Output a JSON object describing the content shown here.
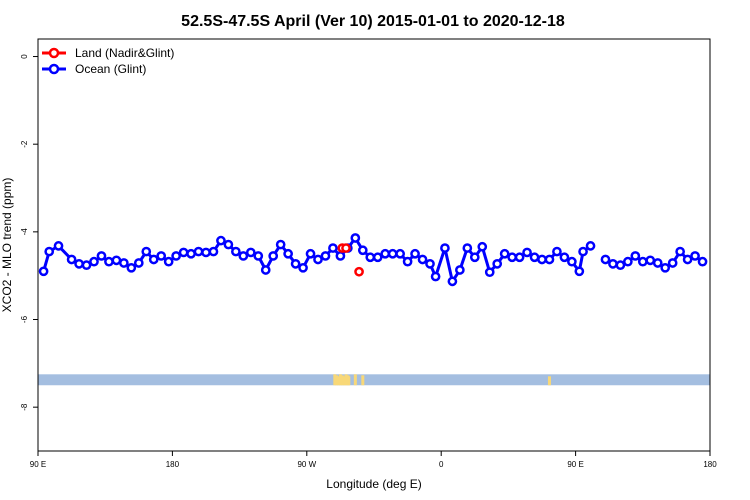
{
  "chart_data": {
    "type": "line",
    "title": "52.5S-47.5S April (Ver 10)   2015-01-01 to 2020-12-18",
    "xlabel": "Longitude (deg E)",
    "ylabel": "XCO2 - MLO trend (ppm)",
    "xlim": [
      90,
      450
    ],
    "ylim": [
      -9.0,
      0.4
    ],
    "x_ticks": [
      {
        "value": 90,
        "label": "90 E"
      },
      {
        "value": 162,
        "label": "180"
      },
      {
        "value": 234,
        "label": "90 W"
      },
      {
        "value": 306,
        "label": "0"
      },
      {
        "value": 378,
        "label": "90 E"
      },
      {
        "value": 450,
        "label": "180"
      }
    ],
    "y_ticks": [
      0,
      -2,
      -4,
      -6,
      -8
    ],
    "legend_position": "top-left",
    "series": [
      {
        "name": "Land (Nadir&Glint)",
        "color": "#ff0000",
        "points": [
          [
            253,
            -4.37
          ],
          [
            255,
            -4.37
          ],
          [
            262,
            -4.91
          ]
        ]
      },
      {
        "name": "Ocean (Glint)",
        "color": "#0000ff",
        "segments": [
          [
            [
              93,
              -4.9
            ],
            [
              96,
              -4.45
            ],
            [
              101,
              -4.32
            ],
            [
              108,
              -4.63
            ],
            [
              112,
              -4.73
            ],
            [
              116,
              -4.76
            ],
            [
              120,
              -4.68
            ],
            [
              124,
              -4.55
            ],
            [
              128,
              -4.68
            ],
            [
              132,
              -4.65
            ],
            [
              136,
              -4.71
            ],
            [
              140,
              -4.82
            ],
            [
              144,
              -4.71
            ],
            [
              148,
              -4.45
            ],
            [
              152,
              -4.63
            ],
            [
              156,
              -4.55
            ],
            [
              160,
              -4.68
            ],
            [
              164,
              -4.55
            ],
            [
              168,
              -4.47
            ],
            [
              172,
              -4.5
            ],
            [
              176,
              -4.45
            ],
            [
              180,
              -4.47
            ],
            [
              184,
              -4.45
            ],
            [
              188,
              -4.2
            ],
            [
              192,
              -4.29
            ],
            [
              196,
              -4.45
            ],
            [
              200,
              -4.55
            ],
            [
              204,
              -4.47
            ],
            [
              208,
              -4.55
            ],
            [
              212,
              -4.87
            ],
            [
              216,
              -4.55
            ],
            [
              220,
              -4.29
            ],
            [
              224,
              -4.5
            ],
            [
              228,
              -4.73
            ],
            [
              232,
              -4.82
            ],
            [
              236,
              -4.5
            ],
            [
              240,
              -4.63
            ],
            [
              244,
              -4.55
            ],
            [
              248,
              -4.37
            ],
            [
              252,
              -4.55
            ],
            [
              256,
              -4.37
            ],
            [
              260,
              -4.14
            ],
            [
              264,
              -4.42
            ],
            [
              268,
              -4.58
            ],
            [
              272,
              -4.58
            ],
            [
              276,
              -4.5
            ],
            [
              280,
              -4.5
            ],
            [
              284,
              -4.5
            ],
            [
              288,
              -4.68
            ],
            [
              292,
              -4.5
            ],
            [
              296,
              -4.63
            ],
            [
              300,
              -4.73
            ],
            [
              303,
              -5.02
            ],
            [
              308,
              -4.37
            ],
            [
              312,
              -5.13
            ],
            [
              316,
              -4.87
            ],
            [
              320,
              -4.37
            ],
            [
              324,
              -4.58
            ],
            [
              328,
              -4.34
            ],
            [
              332,
              -4.92
            ],
            [
              336,
              -4.73
            ],
            [
              340,
              -4.5
            ],
            [
              344,
              -4.58
            ],
            [
              348,
              -4.58
            ],
            [
              352,
              -4.47
            ],
            [
              356,
              -4.58
            ],
            [
              360,
              -4.63
            ],
            [
              364,
              -4.63
            ],
            [
              368,
              -4.45
            ],
            [
              372,
              -4.58
            ],
            [
              376,
              -4.68
            ],
            [
              380,
              -4.9
            ],
            [
              382,
              -4.45
            ],
            [
              386,
              -4.32
            ]
          ],
          [
            [
              394,
              -4.63
            ],
            [
              398,
              -4.73
            ],
            [
              402,
              -4.76
            ],
            [
              406,
              -4.68
            ],
            [
              410,
              -4.55
            ],
            [
              414,
              -4.68
            ],
            [
              418,
              -4.65
            ],
            [
              422,
              -4.71
            ],
            [
              426,
              -4.82
            ],
            [
              430,
              -4.71
            ],
            [
              434,
              -4.45
            ],
            [
              438,
              -4.63
            ],
            [
              442,
              -4.55
            ],
            [
              446,
              -4.68
            ]
          ]
        ]
      }
    ],
    "background_band": {
      "y_range": [
        -7.25,
        -7.5
      ],
      "color": "#a4bee0"
    },
    "land_marks": {
      "color": "#f8d878",
      "x": [
        249,
        250,
        251,
        252,
        253,
        254,
        255,
        256,
        256.5,
        260,
        264,
        364
      ]
    }
  }
}
